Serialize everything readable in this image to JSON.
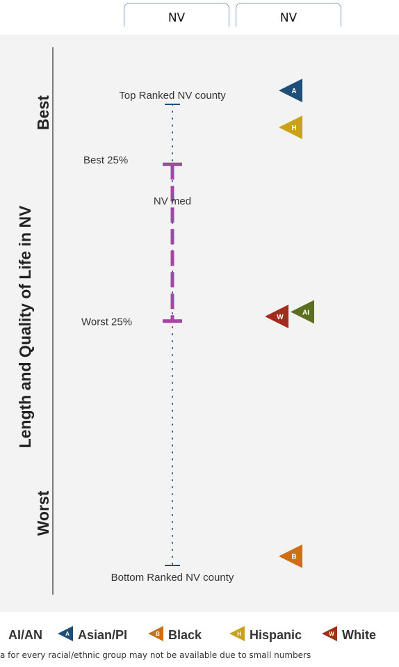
{
  "tabs": [
    "NV",
    "NV"
  ],
  "chart_data": {
    "type": "scatter",
    "y_axis_label": "Length and Quality of Life in NV",
    "y_scale_ends": {
      "best": "Best",
      "worst": "Worst"
    },
    "reference_labels": {
      "top": "Top Ranked NV county",
      "best25": "Best 25%",
      "median": "NV med",
      "worst25": "Worst 25%",
      "bottom": "Bottom Ranked NV county"
    },
    "reference_positions": {
      "top": 0,
      "best25": 0.13,
      "median": 0.21,
      "worst25": 0.47,
      "bottom": 1
    },
    "groups": [
      {
        "code": "A",
        "name": "Asian/PI",
        "color": "#1f4e79",
        "rank_position": -0.03
      },
      {
        "code": "H",
        "name": "Hispanic",
        "color": "#c9a21a",
        "rank_position": 0.05
      },
      {
        "code": "W",
        "name": "White",
        "color": "#a32d1c",
        "rank_position": 0.46
      },
      {
        "code": "AI",
        "name": "AI/AN",
        "color": "#5b6f1e",
        "rank_position": 0.45
      },
      {
        "code": "B",
        "name": "Black",
        "color": "#cf6e12",
        "rank_position": 0.98
      }
    ],
    "range_color": "#a347a3",
    "tick_color": "#1f4e79"
  },
  "legend": [
    {
      "label": "AI/AN",
      "color": "#5b6f1e",
      "code": "AI"
    },
    {
      "label": "Asian/PI",
      "color": "#1f4e79",
      "code": "A"
    },
    {
      "label": "Black",
      "color": "#cf6e12",
      "code": "B"
    },
    {
      "label": "Hispanic",
      "color": "#c9a21a",
      "code": "H"
    },
    {
      "label": "White",
      "color": "#a32d1c",
      "code": "W"
    }
  ],
  "footnote": "a for every racial/ethnic group may not be available due to small numbers"
}
